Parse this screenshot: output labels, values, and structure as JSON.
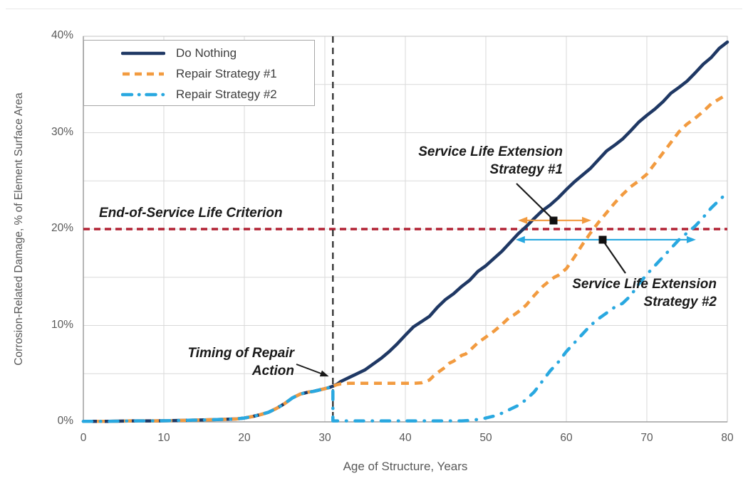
{
  "chart_data": {
    "type": "line",
    "title": "",
    "xlabel": "Age of Structure, Years",
    "ylabel": "Corrosion-Related Damage, % of Element Surface Area",
    "xlim": [
      0,
      80
    ],
    "ylim": [
      0,
      40
    ],
    "x_ticks": [
      0,
      10,
      20,
      30,
      40,
      50,
      60,
      70,
      80
    ],
    "x_tick_labels": [
      "0",
      "10",
      "20",
      "30",
      "40",
      "50",
      "60",
      "70",
      "80"
    ],
    "y_ticks": [
      0,
      10,
      20,
      30,
      40
    ],
    "y_tick_labels": [
      "0%",
      "10%",
      "20%",
      "30%",
      "40%"
    ],
    "grid": {
      "vertical_every_years": 10,
      "horizontal_every_pct": 5,
      "color": "#d9d9d9"
    },
    "legend_position": "top-left",
    "series": [
      {
        "name": "Do Nothing",
        "color": "#1f3864",
        "style": "solid",
        "points": [
          [
            0,
            0.05
          ],
          [
            3,
            0.05
          ],
          [
            6,
            0.1
          ],
          [
            9,
            0.1
          ],
          [
            12,
            0.15
          ],
          [
            15,
            0.2
          ],
          [
            17,
            0.25
          ],
          [
            19,
            0.3
          ],
          [
            20,
            0.4
          ],
          [
            21,
            0.55
          ],
          [
            22,
            0.75
          ],
          [
            23,
            1.0
          ],
          [
            24,
            1.4
          ],
          [
            25,
            1.9
          ],
          [
            26,
            2.5
          ],
          [
            27,
            2.9
          ],
          [
            27.5,
            3.0
          ],
          [
            28,
            3.1
          ],
          [
            28.5,
            3.15
          ],
          [
            29,
            3.25
          ],
          [
            30,
            3.45
          ],
          [
            30.5,
            3.55
          ],
          [
            31,
            3.7
          ],
          [
            31.5,
            3.9
          ],
          [
            32,
            4.2
          ],
          [
            33,
            4.6
          ],
          [
            34,
            5.0
          ],
          [
            35,
            5.4
          ],
          [
            36,
            6.0
          ],
          [
            37,
            6.6
          ],
          [
            38,
            7.3
          ],
          [
            39,
            8.1
          ],
          [
            40,
            9.0
          ],
          [
            41,
            9.85
          ],
          [
            42,
            10.4
          ],
          [
            43,
            10.95
          ],
          [
            44,
            11.9
          ],
          [
            45,
            12.7
          ],
          [
            46,
            13.3
          ],
          [
            47,
            14.05
          ],
          [
            48,
            14.7
          ],
          [
            49,
            15.6
          ],
          [
            50,
            16.2
          ],
          [
            51,
            16.95
          ],
          [
            52,
            17.7
          ],
          [
            53,
            18.6
          ],
          [
            54,
            19.5
          ],
          [
            55,
            20.25
          ],
          [
            56,
            21.1
          ],
          [
            57,
            21.9
          ],
          [
            58,
            22.5
          ],
          [
            59,
            23.25
          ],
          [
            60,
            24.1
          ],
          [
            61,
            24.9
          ],
          [
            62,
            25.6
          ],
          [
            63,
            26.3
          ],
          [
            64,
            27.2
          ],
          [
            65,
            28.1
          ],
          [
            66,
            28.7
          ],
          [
            67,
            29.35
          ],
          [
            68,
            30.2
          ],
          [
            69,
            31.1
          ],
          [
            70,
            31.8
          ],
          [
            71,
            32.45
          ],
          [
            72,
            33.2
          ],
          [
            73,
            34.1
          ],
          [
            74,
            34.7
          ],
          [
            75,
            35.35
          ],
          [
            76,
            36.2
          ],
          [
            77,
            37.1
          ],
          [
            78,
            37.8
          ],
          [
            79,
            38.75
          ],
          [
            80,
            39.4
          ]
        ]
      },
      {
        "name": "Repair Strategy #1",
        "color": "#f29b40",
        "style": "dashed",
        "points": [
          [
            0,
            0.05
          ],
          [
            3,
            0.05
          ],
          [
            6,
            0.1
          ],
          [
            9,
            0.1
          ],
          [
            12,
            0.15
          ],
          [
            15,
            0.2
          ],
          [
            17,
            0.25
          ],
          [
            19,
            0.3
          ],
          [
            20,
            0.4
          ],
          [
            21,
            0.55
          ],
          [
            22,
            0.75
          ],
          [
            23,
            1.0
          ],
          [
            24,
            1.4
          ],
          [
            25,
            1.9
          ],
          [
            26,
            2.5
          ],
          [
            27,
            2.9
          ],
          [
            27.5,
            3.0
          ],
          [
            28,
            3.1
          ],
          [
            28.5,
            3.15
          ],
          [
            29,
            3.25
          ],
          [
            30,
            3.45
          ],
          [
            30.5,
            3.55
          ],
          [
            31,
            3.7
          ],
          [
            31.5,
            3.85
          ],
          [
            32,
            3.95
          ],
          [
            33,
            4.0
          ],
          [
            35,
            4.0
          ],
          [
            37,
            4.0
          ],
          [
            39,
            4.0
          ],
          [
            41,
            4.0
          ],
          [
            42,
            4.05
          ],
          [
            43,
            4.35
          ],
          [
            43.5,
            4.75
          ],
          [
            44,
            5.1
          ],
          [
            45,
            5.7
          ],
          [
            45.5,
            6.1
          ],
          [
            46,
            6.3
          ],
          [
            47,
            6.9
          ],
          [
            47.5,
            7.05
          ],
          [
            48,
            7.4
          ],
          [
            49,
            8.2
          ],
          [
            50,
            8.8
          ],
          [
            51,
            9.4
          ],
          [
            52,
            10.1
          ],
          [
            53,
            10.9
          ],
          [
            53.5,
            11.1
          ],
          [
            54,
            11.4
          ],
          [
            55,
            12.1
          ],
          [
            56,
            13.1
          ],
          [
            57,
            14.0
          ],
          [
            58,
            14.7
          ],
          [
            58.5,
            15.0
          ],
          [
            59,
            15.2
          ],
          [
            60,
            15.9
          ],
          [
            61,
            17.1
          ],
          [
            62,
            18.4
          ],
          [
            63,
            19.6
          ],
          [
            64,
            20.7
          ],
          [
            65,
            21.7
          ],
          [
            66,
            22.7
          ],
          [
            67,
            23.6
          ],
          [
            68,
            24.4
          ],
          [
            69,
            25.0
          ],
          [
            70,
            25.7
          ],
          [
            71,
            26.8
          ],
          [
            72,
            27.9
          ],
          [
            73,
            29.0
          ],
          [
            74,
            30.1
          ],
          [
            75,
            30.9
          ],
          [
            76,
            31.5
          ],
          [
            77,
            32.2
          ],
          [
            78,
            33.0
          ],
          [
            79,
            33.5
          ],
          [
            80,
            34.0
          ]
        ]
      },
      {
        "name": "Repair Strategy #2",
        "color": "#29a8e0",
        "style": "dashdot",
        "points": [
          [
            0,
            0.05
          ],
          [
            3,
            0.05
          ],
          [
            6,
            0.1
          ],
          [
            9,
            0.1
          ],
          [
            12,
            0.15
          ],
          [
            15,
            0.2
          ],
          [
            17,
            0.25
          ],
          [
            19,
            0.3
          ],
          [
            20,
            0.4
          ],
          [
            21,
            0.55
          ],
          [
            22,
            0.75
          ],
          [
            23,
            1.0
          ],
          [
            24,
            1.4
          ],
          [
            25,
            1.9
          ],
          [
            26,
            2.5
          ],
          [
            27,
            2.9
          ],
          [
            27.5,
            3.0
          ],
          [
            28,
            3.1
          ],
          [
            28.5,
            3.15
          ],
          [
            29,
            3.25
          ],
          [
            30,
            3.45
          ],
          [
            30.5,
            3.55
          ],
          [
            31,
            3.6
          ],
          [
            31,
            0.1
          ],
          [
            33,
            0.1
          ],
          [
            36,
            0.1
          ],
          [
            39,
            0.1
          ],
          [
            42,
            0.1
          ],
          [
            45,
            0.1
          ],
          [
            47,
            0.1
          ],
          [
            48,
            0.15
          ],
          [
            49,
            0.25
          ],
          [
            50,
            0.4
          ],
          [
            51,
            0.6
          ],
          [
            52,
            0.9
          ],
          [
            53,
            1.3
          ],
          [
            54,
            1.7
          ],
          [
            55,
            2.3
          ],
          [
            56,
            3.1
          ],
          [
            57,
            4.2
          ],
          [
            58,
            5.3
          ],
          [
            59,
            6.2
          ],
          [
            60,
            7.3
          ],
          [
            61,
            8.2
          ],
          [
            62,
            9.1
          ],
          [
            63,
            10.0
          ],
          [
            64,
            10.7
          ],
          [
            65,
            11.3
          ],
          [
            66,
            11.9
          ],
          [
            67,
            12.3
          ],
          [
            68,
            13.1
          ],
          [
            69,
            14.3
          ],
          [
            70,
            15.3
          ],
          [
            71,
            16.2
          ],
          [
            72,
            17.1
          ],
          [
            73,
            18.0
          ],
          [
            74,
            18.9
          ],
          [
            75,
            19.6
          ],
          [
            76,
            20.3
          ],
          [
            77,
            21.2
          ],
          [
            78,
            22.2
          ],
          [
            79,
            23.0
          ],
          [
            80,
            23.8
          ]
        ]
      }
    ],
    "reference_lines": [
      {
        "name": "end-of-service-life-criterion",
        "orientation": "horizontal",
        "value": 20,
        "color": "#b22234",
        "style": "dashed"
      },
      {
        "name": "timing-of-repair-action",
        "orientation": "vertical",
        "value": 31,
        "color": "#262626",
        "style": "dashed"
      }
    ],
    "extension_arrows": [
      {
        "name": "service-life-extension-1",
        "color": "#f29b40",
        "y": 20.9,
        "x1": 54.0,
        "x2": 63.1,
        "double_headed": true
      },
      {
        "name": "service-life-extension-2",
        "color": "#29a8e0",
        "y": 18.9,
        "x1": 53.7,
        "x2": 76.1,
        "double_headed": true
      }
    ]
  },
  "axes": {
    "x_title": "Age of Structure, Years",
    "y_title": "Corrosion-Related Damage, % of Element Surface Area"
  },
  "legend": {
    "item1": "Do Nothing",
    "item2": "Repair Strategy #1",
    "item3": "Repair Strategy #2"
  },
  "annotations": {
    "eol": {
      "text": "End-of-Service Life Criterion",
      "at_pct": 20
    },
    "timing": {
      "line1": "Timing of Repair",
      "line2": "Action",
      "at_year": 31
    },
    "sle1": {
      "line1": "Service Life Extension",
      "line2": "Strategy #1"
    },
    "sle2": {
      "line1": "Service Life Extension",
      "line2": "Strategy #2"
    }
  }
}
